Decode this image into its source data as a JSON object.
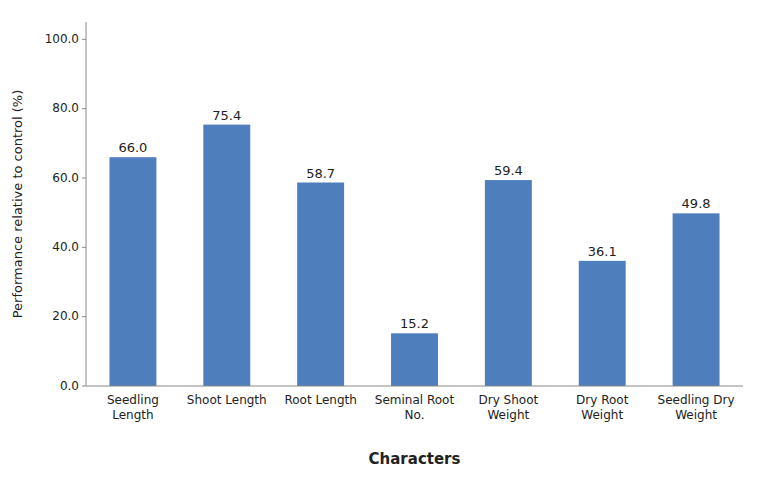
{
  "chart_data": {
    "type": "bar",
    "xlabel": "Characters",
    "ylabel": "Performance relative to control (%)",
    "categories": [
      "Seedling\nLength",
      "Shoot Length",
      "Root Length",
      "Seminal Root\nNo.",
      "Dry Shoot\nWeight",
      "Dry Root\nWeight",
      "Seedling Dry\nWeight"
    ],
    "values": [
      66.0,
      75.4,
      58.7,
      15.2,
      59.4,
      36.1,
      49.8
    ],
    "value_labels": [
      "66.0",
      "75.4",
      "58.7",
      "15.2",
      "59.4",
      "36.1",
      "49.8"
    ],
    "data_labels": true,
    "color": "#4e7fbc",
    "ylim": [
      0,
      105
    ],
    "yticks": [
      {
        "value": 0.0,
        "label": "0.0"
      },
      {
        "value": 20.0,
        "label": "20.0"
      },
      {
        "value": 40.0,
        "label": "40.0"
      },
      {
        "value": 60.0,
        "label": "60.0"
      },
      {
        "value": 80.0,
        "label": "80.0"
      },
      {
        "value": 100.0,
        "label": "100.0"
      }
    ],
    "grid": false
  }
}
